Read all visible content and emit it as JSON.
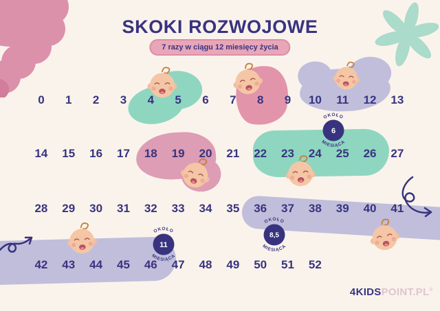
{
  "title": "SKOKI ROZWOJOWE",
  "subtitle_badge": "7 razy w ciągu 12 miesięcy życia",
  "weeks": {
    "row1": [
      "0",
      "1",
      "2",
      "3",
      "4",
      "5",
      "6",
      "7",
      "8",
      "9",
      "10",
      "11",
      "12",
      "13"
    ],
    "row2": [
      "14",
      "15",
      "16",
      "17",
      "18",
      "19",
      "20",
      "21",
      "22",
      "23",
      "24",
      "25",
      "26",
      "27"
    ],
    "row3": [
      "28",
      "29",
      "30",
      "31",
      "32",
      "33",
      "34",
      "35",
      "36",
      "37",
      "38",
      "39",
      "40",
      "41"
    ],
    "row4": [
      "42",
      "43",
      "44",
      "45",
      "46",
      "47",
      "48",
      "49",
      "50",
      "51",
      "52"
    ]
  },
  "leaps": [
    {
      "weeks": "4-5",
      "color_key": "teal"
    },
    {
      "weeks": "8",
      "color_key": "pink"
    },
    {
      "weeks": "10-12",
      "color_key": "lavender"
    },
    {
      "weeks": "18-20",
      "color_key": "dusty_pink"
    },
    {
      "weeks": "22-26",
      "color_key": "teal"
    },
    {
      "weeks": "36-41",
      "color_key": "lavender"
    },
    {
      "weeks": "42-46",
      "color_key": "lavender"
    }
  ],
  "milestone_badges": [
    {
      "top": "OKOŁO",
      "value": "6",
      "bottom": "MIESIĄCA"
    },
    {
      "top": "OKOŁO",
      "value": "8,5",
      "bottom": "MIESIĄCA"
    },
    {
      "top": "OKOŁO",
      "value": "11",
      "bottom": "MIESIĄCA"
    }
  ],
  "logo": {
    "primary": "4KIDS",
    "secondary": "POINT.PL",
    "mark": "®"
  },
  "decorations": {
    "cloud": "scalloped-cloud-icon",
    "star": "star-flower-icon",
    "baby": "crying-baby-icon",
    "arrow_left": "squiggle-arrow-up-right-icon",
    "arrow_right": "squiggle-arrow-down-right-icon"
  },
  "colors": {
    "cream": "#faf3ec",
    "navy": "#38337f",
    "teal": "#8fd6c1",
    "pink": "#e295aa",
    "dusty_pink": "#dd9db4",
    "lavender": "#c0bedb",
    "pill": "#e8a6b8",
    "pill_border": "#d98fa6",
    "mint": "#abdbca",
    "cloud": "#dc91ab",
    "cloud_dark": "#d27d9b",
    "skin": "#f5c6a6",
    "logo_secondary": "#e0c5ce"
  }
}
